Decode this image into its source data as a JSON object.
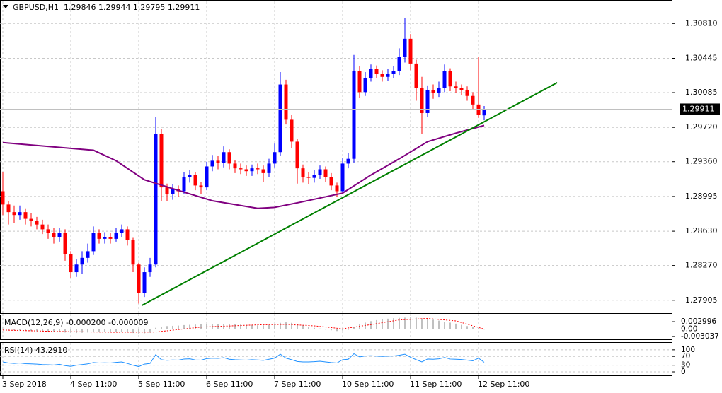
{
  "chart_data": [
    {
      "type": "candlestick",
      "title": "GBPUSD,H1  1.29846 1.29944 1.29795 1.29911",
      "open": [
        1.2905,
        1.2891,
        1.2883,
        1.288,
        1.2883,
        1.2876,
        1.2874,
        1.287,
        1.2865,
        1.2861,
        1.2857,
        1.2861,
        1.2839,
        1.282,
        1.2828,
        1.2835,
        1.2842,
        1.2861,
        1.2855,
        1.2857,
        1.2855,
        1.2861,
        1.2865,
        1.2854,
        1.2828,
        1.2798,
        1.282,
        1.2828,
        1.2965,
        1.2909,
        1.2902,
        1.2907,
        1.2905,
        1.292,
        1.2922,
        1.2911,
        1.2909,
        1.2931,
        1.2937,
        1.2935,
        1.2946,
        1.2934,
        1.2929,
        1.2928,
        1.2926,
        1.2929,
        1.2928,
        1.2924,
        1.2934,
        1.2946,
        1.3017,
        1.298,
        1.2957,
        1.2929,
        1.292,
        1.2919,
        1.2922,
        1.2928,
        1.292,
        1.2911,
        1.2905,
        1.2934,
        1.2939,
        1.3031,
        1.3009,
        1.3024,
        1.3033,
        1.3028,
        1.3025,
        1.3028,
        1.3031,
        1.3046,
        1.3065,
        1.3039,
        1.3013,
        1.2987,
        1.3011,
        1.3008,
        1.3013,
        1.3031,
        1.3015,
        1.3013,
        1.3011,
        1.3005,
        1.2996,
        1.29846
      ],
      "high": [
        1.2925,
        1.2895,
        1.289,
        1.289,
        1.2887,
        1.2882,
        1.2878,
        1.2875,
        1.287,
        1.2866,
        1.2866,
        1.2865,
        1.2842,
        1.2834,
        1.2842,
        1.285,
        1.2868,
        1.2865,
        1.2862,
        1.2861,
        1.2866,
        1.287,
        1.2868,
        1.2856,
        1.283,
        1.2825,
        1.2835,
        1.2983,
        1.297,
        1.2913,
        1.2912,
        1.2911,
        1.2925,
        1.2927,
        1.2925,
        1.2915,
        1.2936,
        1.2943,
        1.2942,
        1.2952,
        1.2949,
        1.2938,
        1.2934,
        1.2932,
        1.2933,
        1.2934,
        1.2932,
        1.2939,
        1.2955,
        1.303,
        1.3022,
        1.2985,
        1.296,
        1.2933,
        1.2925,
        1.2927,
        1.2932,
        1.2931,
        1.2924,
        1.2914,
        1.294,
        1.2945,
        1.3048,
        1.3036,
        1.303,
        1.3038,
        1.3037,
        1.3032,
        1.3033,
        1.3036,
        1.3055,
        1.3087,
        1.307,
        1.3043,
        1.3025,
        1.3016,
        1.3017,
        1.302,
        1.3038,
        1.3034,
        1.302,
        1.3017,
        1.3015,
        1.3009,
        1.3046,
        1.29944
      ],
      "low": [
        1.288,
        1.287,
        1.2872,
        1.2875,
        1.287,
        1.2868,
        1.2865,
        1.286,
        1.2855,
        1.285,
        1.2852,
        1.2832,
        1.2814,
        1.2815,
        1.2818,
        1.283,
        1.2838,
        1.285,
        1.285,
        1.285,
        1.2852,
        1.2857,
        1.2848,
        1.282,
        1.2787,
        1.2794,
        1.2815,
        1.2825,
        1.2895,
        1.2895,
        1.2896,
        1.2899,
        1.2902,
        1.2914,
        1.2906,
        1.2902,
        1.2906,
        1.2926,
        1.2928,
        1.293,
        1.2928,
        1.2924,
        1.2923,
        1.2921,
        1.2921,
        1.2923,
        1.2915,
        1.292,
        1.293,
        1.2942,
        1.2975,
        1.295,
        1.2913,
        1.2914,
        1.2912,
        1.2914,
        1.2918,
        1.2915,
        1.2906,
        1.2899,
        1.2902,
        1.2929,
        1.2935,
        1.3003,
        1.3005,
        1.302,
        1.3024,
        1.302,
        1.3021,
        1.3024,
        1.3027,
        1.304,
        1.3032,
        1.3,
        1.2965,
        1.2983,
        1.3002,
        1.3004,
        1.3009,
        1.301,
        1.3008,
        1.3006,
        1.3,
        1.299,
        1.2982,
        1.29795
      ],
      "close": [
        1.2891,
        1.2883,
        1.288,
        1.2883,
        1.2876,
        1.2874,
        1.287,
        1.2865,
        1.2861,
        1.2857,
        1.2861,
        1.2839,
        1.282,
        1.2828,
        1.2835,
        1.2842,
        1.2861,
        1.2855,
        1.2857,
        1.2855,
        1.2861,
        1.2865,
        1.2854,
        1.2828,
        1.2798,
        1.282,
        1.2828,
        1.2965,
        1.2909,
        1.2902,
        1.2907,
        1.2905,
        1.292,
        1.2922,
        1.2911,
        1.2909,
        1.2931,
        1.2937,
        1.2935,
        1.2946,
        1.2934,
        1.2929,
        1.2928,
        1.2926,
        1.2929,
        1.2928,
        1.2924,
        1.2934,
        1.2946,
        1.3017,
        1.298,
        1.2957,
        1.2929,
        1.292,
        1.2919,
        1.2922,
        1.2928,
        1.292,
        1.2911,
        1.2905,
        1.2934,
        1.2939,
        1.3031,
        1.3009,
        1.3024,
        1.3033,
        1.3028,
        1.3025,
        1.3028,
        1.3031,
        1.3046,
        1.3065,
        1.3039,
        1.3013,
        1.2987,
        1.3011,
        1.3008,
        1.3013,
        1.3031,
        1.3015,
        1.3013,
        1.3011,
        1.3005,
        1.2996,
        1.2985,
        1.29911
      ],
      "up_color": "#0000ff",
      "down_color": "#ff0000",
      "moving_average": {
        "color": "#800080",
        "x": [
          0,
          12,
          16,
          20,
          25,
          32,
          37,
          45,
          48,
          53,
          60,
          65,
          70,
          75,
          80,
          85
        ],
        "values": [
          1.2956,
          1.295,
          1.2948,
          1.2937,
          1.2917,
          1.2904,
          1.2895,
          1.2887,
          1.2888,
          1.2894,
          1.2903,
          1.2922,
          1.2939,
          1.2957,
          1.2966,
          1.2974
        ]
      },
      "trend_line": {
        "color": "#008000",
        "x": [
          24.5,
          97.9
        ],
        "values": [
          1.2785,
          1.3019
        ]
      },
      "current_price": 1.29911,
      "xlim": [
        -0.5,
        118
      ],
      "xticks": [
        {
          "value": 0,
          "label": "3 Sep 2018"
        },
        {
          "value": 12,
          "label": "4 Sep 11:00"
        },
        {
          "value": 24,
          "label": "5 Sep 11:00"
        },
        {
          "value": 36,
          "label": "6 Sep 11:00"
        },
        {
          "value": 48,
          "label": "7 Sep 11:00"
        },
        {
          "value": 60,
          "label": "10 Sep 11:00"
        },
        {
          "value": 72,
          "label": "11 Sep 11:00"
        },
        {
          "value": 84,
          "label": "12 Sep 11:00"
        }
      ],
      "ylim": [
        1.2777,
        1.3102
      ],
      "yticks": [
        {
          "value": 1.3081,
          "label": "1.30810"
        },
        1.30445,
        1.30085,
        {
          "value": 1.2972,
          "label": "1.29720"
        },
        {
          "value": 1.2936,
          "label": "1.29360"
        },
        1.28995,
        {
          "value": 1.2863,
          "label": "1.28630"
        },
        {
          "value": 1.2827,
          "label": "1.28270"
        },
        1.27905
      ],
      "grid": true
    },
    {
      "type": "bar",
      "title": "MACD(12,26,9) -0.000200 -0.000009",
      "values": [
        -0.0003,
        -0.0004,
        -0.0005,
        -0.0006,
        -0.0007,
        -0.0008,
        -0.0009,
        -0.001,
        -0.0011,
        -0.0012,
        -0.0013,
        -0.0014,
        -0.0015,
        -0.0016,
        -0.0015,
        -0.0014,
        -0.0013,
        -0.0013,
        -0.0012,
        -0.0012,
        -0.0012,
        -0.0013,
        -0.0014,
        -0.0016,
        -0.0018,
        -0.0017,
        -0.0015,
        0.0005,
        0.001,
        0.0012,
        0.0013,
        0.0014,
        0.0016,
        0.0017,
        0.0018,
        0.0019,
        0.002,
        0.0021,
        0.0021,
        0.0021,
        0.002,
        0.0019,
        0.0018,
        0.0017,
        0.0016,
        0.0015,
        0.0015,
        0.0016,
        0.0018,
        0.0025,
        0.0027,
        0.0025,
        0.002,
        0.0015,
        0.001,
        0.0005,
        0.0002,
        -0.0002,
        -0.0005,
        -0.0008,
        -0.0006,
        -0.0003,
        0.001,
        0.002,
        0.0026,
        0.0032,
        0.0036,
        0.004,
        0.0042,
        0.0044,
        0.0045,
        0.0046,
        0.0047,
        0.0046,
        0.0043,
        0.0041,
        0.0038,
        0.0034,
        0.003,
        0.0026,
        0.0022,
        0.0017,
        0.0012,
        0.0008,
        0.0004,
        -0.0002
      ],
      "color": "#c0c0c0",
      "signal": {
        "color": "#ff0000",
        "x": [
          0,
          10,
          20,
          27,
          35,
          45,
          50,
          55,
          60,
          65,
          70,
          75,
          80,
          85
        ],
        "values": [
          -0.0004,
          -0.001,
          -0.0013,
          -0.0012,
          0.0008,
          0.0017,
          0.0019,
          0.0013,
          0.0001,
          0.0018,
          0.0037,
          0.0043,
          0.0033,
          -9e-06
        ]
      },
      "ylim": [
        -0.0033,
        0.0053
      ],
      "yticks": [
        0.002996,
        {
          "value": 0,
          "label": "0.00"
        },
        -0.003037
      ],
      "grid": false
    },
    {
      "type": "line",
      "title": "RSI(14) 43.2910",
      "values": [
        45,
        40,
        38,
        40,
        37,
        36,
        35,
        33,
        32,
        31,
        34,
        28,
        25,
        30,
        33,
        36,
        42,
        40,
        41,
        40,
        43,
        45,
        38,
        30,
        24,
        35,
        38,
        78,
        55,
        52,
        54,
        53,
        58,
        59,
        54,
        53,
        60,
        62,
        61,
        64,
        57,
        55,
        54,
        53,
        55,
        54,
        52,
        57,
        62,
        80,
        62,
        55,
        47,
        45,
        45,
        46,
        48,
        45,
        42,
        40,
        55,
        57,
        82,
        68,
        72,
        73,
        71,
        70,
        71,
        72,
        75,
        80,
        66,
        55,
        45,
        58,
        57,
        59,
        65,
        58,
        57,
        56,
        53,
        50,
        62,
        43.291
      ],
      "color": "#1e90ff",
      "ylim": [
        -16,
        122
      ],
      "yticks": [
        100,
        70,
        30,
        0
      ],
      "grid": false
    }
  ]
}
